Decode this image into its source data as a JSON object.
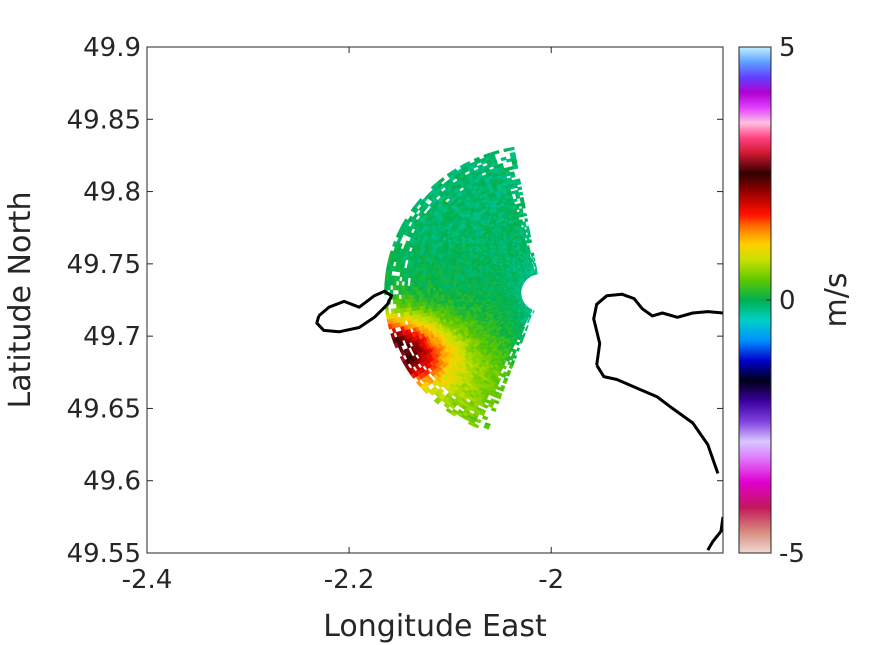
{
  "chart_data": {
    "type": "heatmap",
    "title": "",
    "xlabel": "Longitude East",
    "ylabel": "Latitude North",
    "xlim": [
      -2.4,
      -1.83
    ],
    "ylim": [
      49.55,
      49.9
    ],
    "xticks": [
      {
        "value": -2.4,
        "label": "-2.4"
      },
      {
        "value": -2.2,
        "label": "-2.2"
      },
      {
        "value": -2.0,
        "label": "-2"
      }
    ],
    "yticks": [
      {
        "value": 49.9,
        "label": "49.9"
      },
      {
        "value": 49.85,
        "label": "49.85"
      },
      {
        "value": 49.8,
        "label": "49.8"
      },
      {
        "value": 49.75,
        "label": "49.75"
      },
      {
        "value": 49.7,
        "label": "49.7"
      },
      {
        "value": 49.65,
        "label": "49.65"
      },
      {
        "value": 49.6,
        "label": "49.6"
      },
      {
        "value": 49.55,
        "label": "49.55"
      }
    ],
    "grid": false,
    "colorbar": {
      "label": "m/s",
      "min": -5,
      "max": 5,
      "ticks": [
        {
          "value": 5,
          "label": "5"
        },
        {
          "value": 0,
          "label": "0"
        },
        {
          "value": -5,
          "label": "-5"
        }
      ],
      "stops": [
        {
          "value": -5,
          "color": "#f2d9d4"
        },
        {
          "value": -4.6,
          "color": "#d88f80"
        },
        {
          "value": -4.1,
          "color": "#c2185b"
        },
        {
          "value": -3.6,
          "color": "#e000d0"
        },
        {
          "value": -3.1,
          "color": "#e080ff"
        },
        {
          "value": -2.8,
          "color": "#d8c8ff"
        },
        {
          "value": -2.4,
          "color": "#8040e0"
        },
        {
          "value": -2.0,
          "color": "#3a00a0"
        },
        {
          "value": -1.6,
          "color": "#000018"
        },
        {
          "value": -1.2,
          "color": "#0000c8"
        },
        {
          "value": -0.8,
          "color": "#0090ff"
        },
        {
          "value": -0.4,
          "color": "#00d0c8"
        },
        {
          "value": 0.0,
          "color": "#00b050"
        },
        {
          "value": 0.4,
          "color": "#60c800"
        },
        {
          "value": 0.8,
          "color": "#c8e000"
        },
        {
          "value": 1.1,
          "color": "#ffd000"
        },
        {
          "value": 1.4,
          "color": "#ff8000"
        },
        {
          "value": 1.7,
          "color": "#ff1000"
        },
        {
          "value": 2.1,
          "color": "#a00000"
        },
        {
          "value": 2.5,
          "color": "#300000"
        },
        {
          "value": 2.9,
          "color": "#d01830"
        },
        {
          "value": 3.2,
          "color": "#ff4080"
        },
        {
          "value": 3.5,
          "color": "#ffc0e0"
        },
        {
          "value": 3.8,
          "color": "#e040ff"
        },
        {
          "value": 4.1,
          "color": "#b000d0"
        },
        {
          "value": 4.4,
          "color": "#6040ff"
        },
        {
          "value": 4.7,
          "color": "#60a0ff"
        },
        {
          "value": 5.0,
          "color": "#c0f0ff"
        }
      ]
    },
    "field": {
      "center_lon": -2.01,
      "center_lat": 49.73,
      "range_min_deg": 0.02,
      "range_max_deg": 0.155,
      "bearing_min_deg": 200,
      "bearing_max_deg": 350,
      "background_value": 0.05,
      "features": [
        {
          "lon": -2.165,
          "lat": 49.688,
          "value": 2.7,
          "sigma_lon": 0.04,
          "sigma_lat": 0.017
        },
        {
          "lon": -2.205,
          "lat": 49.68,
          "value": 1.2,
          "sigma_lon": 0.025,
          "sigma_lat": 0.02
        },
        {
          "lon": -2.21,
          "lat": 49.645,
          "value": 1.0,
          "sigma_lon": 0.03,
          "sigma_lat": 0.015
        },
        {
          "lon": -1.965,
          "lat": 49.712,
          "value": -2.2,
          "sigma_lon": 0.015,
          "sigma_lat": 0.012
        },
        {
          "lon": -1.98,
          "lat": 49.71,
          "value": -0.7,
          "sigma_lon": 0.03,
          "sigma_lat": 0.03
        },
        {
          "lon": -2.08,
          "lat": 49.8,
          "value": -0.15,
          "sigma_lon": 0.08,
          "sigma_lat": 0.05
        },
        {
          "lon": -2.09,
          "lat": 49.66,
          "value": 0.5,
          "sigma_lon": 0.05,
          "sigma_lat": 0.03
        }
      ]
    },
    "coastlines": [
      [
        [
          -2.23,
          49.714
        ],
        [
          -2.22,
          49.72
        ],
        [
          -2.205,
          49.724
        ],
        [
          -2.19,
          49.72
        ],
        [
          -2.175,
          49.728
        ],
        [
          -2.165,
          49.731
        ],
        [
          -2.158,
          49.728
        ],
        [
          -2.162,
          49.722
        ],
        [
          -2.175,
          49.713
        ],
        [
          -2.19,
          49.706
        ],
        [
          -2.21,
          49.703
        ],
        [
          -2.225,
          49.704
        ],
        [
          -2.232,
          49.709
        ],
        [
          -2.23,
          49.714
        ]
      ],
      [
        [
          -1.955,
          49.68
        ],
        [
          -1.952,
          49.695
        ],
        [
          -1.958,
          49.712
        ],
        [
          -1.955,
          49.722
        ],
        [
          -1.945,
          49.728
        ],
        [
          -1.93,
          49.729
        ],
        [
          -1.918,
          49.726
        ],
        [
          -1.91,
          49.719
        ],
        [
          -1.9,
          49.714
        ],
        [
          -1.89,
          49.716
        ],
        [
          -1.875,
          49.713
        ],
        [
          -1.86,
          49.716
        ],
        [
          -1.845,
          49.717
        ],
        [
          -1.83,
          49.716
        ]
      ],
      [
        [
          -1.955,
          49.68
        ],
        [
          -1.948,
          49.672
        ],
        [
          -1.935,
          49.67
        ],
        [
          -1.915,
          49.664
        ],
        [
          -1.895,
          49.658
        ],
        [
          -1.88,
          49.65
        ],
        [
          -1.86,
          49.64
        ],
        [
          -1.845,
          49.625
        ],
        [
          -1.835,
          49.605
        ]
      ],
      [
        [
          -1.83,
          49.575
        ],
        [
          -1.832,
          49.565
        ],
        [
          -1.84,
          49.558
        ],
        [
          -1.845,
          49.552
        ]
      ]
    ]
  }
}
